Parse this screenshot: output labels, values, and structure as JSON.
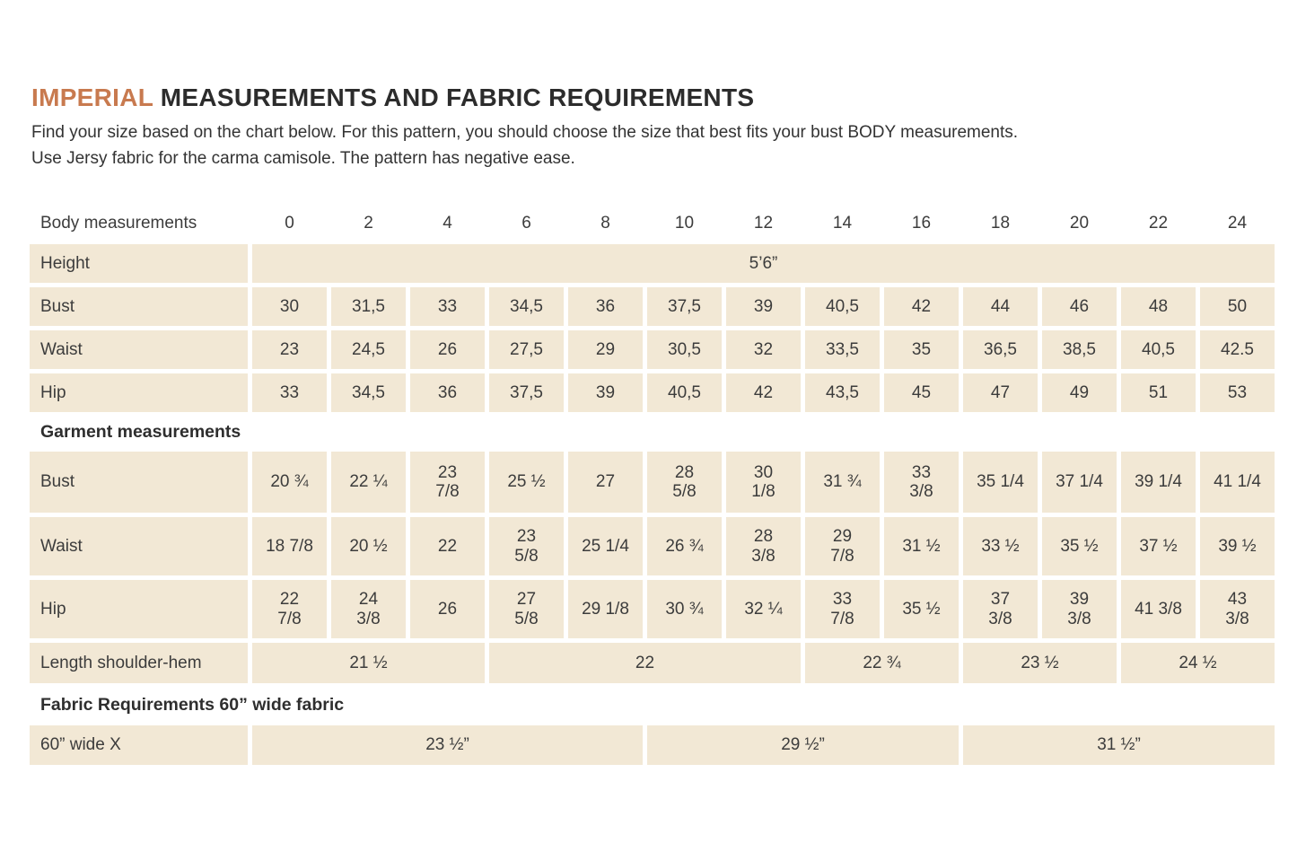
{
  "page": {
    "title_accent": "IMPERIAL",
    "title_rest": " MEASUREMENTS AND FABRIC REQUIREMENTS",
    "subtitle_line1": "Find your size based on the chart below. For this pattern, you should choose the size that best fits your bust BODY measurements.",
    "subtitle_line2": "Use Jersy fabric for the carma camisole. The pattern has negative ease."
  },
  "colors": {
    "accent_orange": "#c87a4f",
    "cell_beige": "#f2e8d5",
    "text": "#3c3c3c"
  },
  "table": {
    "header_label": "Body measurements",
    "sizes": [
      "0",
      "2",
      "4",
      "6",
      "8",
      "10",
      "12",
      "14",
      "16",
      "18",
      "20",
      "22",
      "24"
    ],
    "height_row": {
      "label": "Height",
      "value": "5’6”"
    },
    "body_rows": [
      {
        "label": "Bust",
        "values": [
          "30",
          "31,5",
          "33",
          "34,5",
          "36",
          "37,5",
          "39",
          "40,5",
          "42",
          "44",
          "46",
          "48",
          "50"
        ]
      },
      {
        "label": "Waist",
        "values": [
          "23",
          "24,5",
          "26",
          "27,5",
          "29",
          "30,5",
          "32",
          "33,5",
          "35",
          "36,5",
          "38,5",
          "40,5",
          "42.5"
        ]
      },
      {
        "label": "Hip",
        "values": [
          "33",
          "34,5",
          "36",
          "37,5",
          "39",
          "40,5",
          "42",
          "43,5",
          "45",
          "47",
          "49",
          "51",
          "53"
        ]
      }
    ],
    "garment_heading": "Garment measurements",
    "garment_rows": [
      {
        "label": "Bust",
        "values": [
          "20 ¾",
          "22 ¼",
          "23\n7/8",
          "25 ½",
          "27",
          "28\n5/8",
          "30\n1/8",
          "31 ¾",
          "33\n3/8",
          "35 1/4",
          "37 1/4",
          "39 1/4",
          "41 1/4"
        ]
      },
      {
        "label": "Waist",
        "values": [
          "18 7/8",
          "20 ½",
          "22",
          "23\n5/8",
          "25 1/4",
          "26 ¾",
          "28\n3/8",
          "29\n7/8",
          "31 ½",
          "33 ½",
          "35 ½",
          "37 ½",
          "39 ½"
        ]
      },
      {
        "label": "Hip",
        "values": [
          "22\n7/8",
          "24\n3/8",
          "26",
          "27\n5/8",
          "29 1/8",
          "30 ¾",
          "32 ¼",
          "33\n7/8",
          "35 ½",
          "37\n3/8",
          "39\n3/8",
          "41 3/8",
          "43\n3/8"
        ]
      }
    ],
    "length_row": {
      "label": "Length shoulder-hem",
      "cells": [
        {
          "value": "21 ½",
          "span": 3
        },
        {
          "value": "22",
          "span": 4
        },
        {
          "value": "22 ¾",
          "span": 2
        },
        {
          "value": "23 ½",
          "span": 2
        },
        {
          "value": "24 ½",
          "span": 2
        }
      ]
    },
    "fabric_heading": "Fabric Requirements 60” wide fabric",
    "fabric_row": {
      "label": "60” wide X",
      "cells": [
        {
          "value": "23 ½”",
          "span": 5
        },
        {
          "value": "29 ½”",
          "span": 4
        },
        {
          "value": "31 ½”",
          "span": 4
        }
      ]
    }
  }
}
